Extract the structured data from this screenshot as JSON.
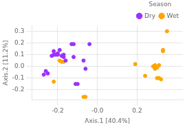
{
  "chart_data": {
    "type": "scatter",
    "xlabel": "Axis.1 [40.4%]",
    "ylabel": "Axis.2 [11.2%]",
    "series": [
      {
        "name": "Dry",
        "color": "#9B30FF",
        "x": [
          -0.27,
          -0.26,
          -0.25,
          -0.23,
          -0.22,
          -0.22,
          -0.21,
          -0.2,
          -0.2,
          -0.19,
          -0.18,
          -0.17,
          -0.17,
          -0.16,
          -0.13,
          -0.12,
          -0.12,
          -0.11,
          -0.1,
          -0.07,
          -0.06,
          -0.04
        ],
        "values": [
          -0.07,
          -0.04,
          -0.06,
          0.09,
          0.1,
          0.13,
          0.1,
          0.1,
          0.11,
          0.14,
          0.09,
          0.1,
          0.08,
          0.05,
          0.19,
          0.19,
          0.08,
          -0.15,
          -0.15,
          0.05,
          -0.02,
          0.19
        ]
      },
      {
        "name": "Wet",
        "color": "#FFA500",
        "x": [
          -0.22,
          -0.2,
          -0.19,
          -0.18,
          -0.17,
          -0.07,
          -0.06,
          0.19,
          0.24,
          0.28,
          0.29,
          0.29,
          0.3,
          0.3,
          0.31,
          0.31,
          0.32,
          0.33,
          0.33,
          0.35
        ],
        "values": [
          -0.13,
          0.11,
          0.05,
          0.04,
          0.04,
          -0.26,
          -0.26,
          0.02,
          -0.08,
          0,
          0.01,
          -0.02,
          -0.01,
          -0.1,
          -0.1,
          0.01,
          -0.11,
          0.13,
          0.14,
          0.3
        ]
      }
    ],
    "xlim": [
      -0.33,
      0.43
    ],
    "ylim": [
      -0.285,
      0.345
    ],
    "xticks": [
      -0.2,
      {
        "value": 0,
        "label": "-0.0"
      },
      0.2
    ],
    "yticks": [
      -0.2,
      -0.1,
      {
        "value": 0,
        "label": "0.0"
      },
      0.1,
      0.2,
      0.3
    ],
    "grid": true,
    "legend": "upper right",
    "legend_title": "Season"
  }
}
